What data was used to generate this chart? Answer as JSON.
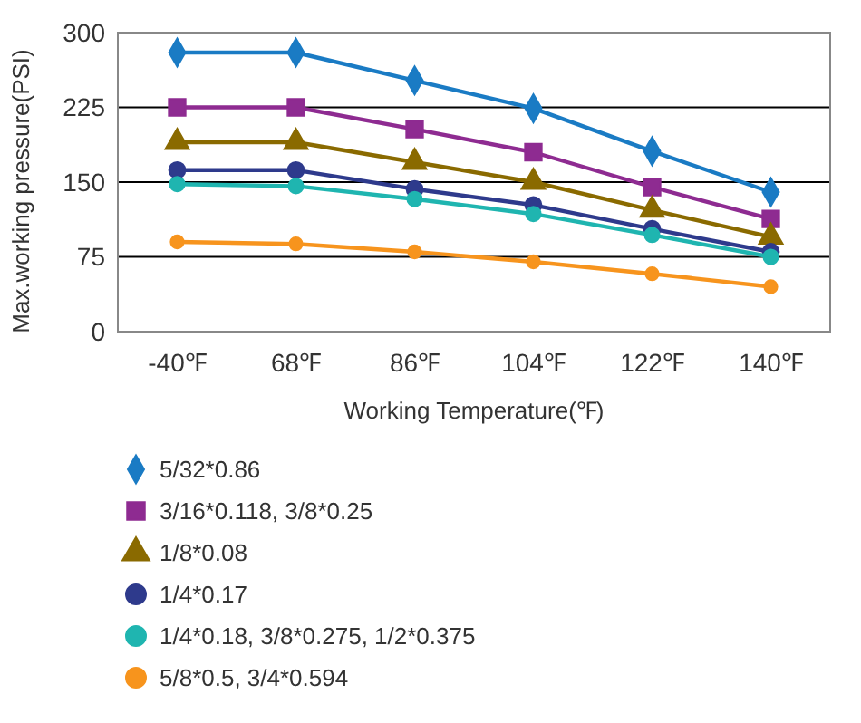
{
  "chart_data": {
    "type": "line",
    "xlabel": "Working Temperature(℉)",
    "ylabel": "Max.working pressure(PSI)",
    "categories": [
      "-40℉",
      "68℉",
      "86℉",
      "104℉",
      "122℉",
      "140℉"
    ],
    "ylim": [
      0,
      300
    ],
    "yticks": [
      0,
      75,
      150,
      225,
      300
    ],
    "grid": "y",
    "legend": "bottom",
    "series": [
      {
        "name": "5/32*0.86",
        "color": "#1a7bc4",
        "marker": "diamond",
        "values": [
          280,
          280,
          252,
          224,
          181,
          140
        ]
      },
      {
        "name": "3/16*0.118, 3/8*0.25",
        "color": "#8e2b91",
        "marker": "square",
        "values": [
          225,
          225,
          203,
          180,
          145,
          113
        ]
      },
      {
        "name": "1/8*0.08",
        "color": "#8a6a00",
        "marker": "triangle",
        "values": [
          190,
          190,
          170,
          150,
          122,
          95
        ]
      },
      {
        "name": "1/4*0.17",
        "color": "#2e3a8c",
        "marker": "circle",
        "values": [
          162,
          162,
          143,
          127,
          103,
          80
        ]
      },
      {
        "name": "1/4*0.18, 3/8*0.275, 1/2*0.375",
        "color": "#1fb5b0",
        "marker": "circle",
        "values": [
          148,
          146,
          133,
          118,
          97,
          75
        ]
      },
      {
        "name": "5/8*0.5, 3/4*0.594",
        "color": "#f7941d",
        "marker": "circle",
        "values": [
          90,
          88,
          80,
          70,
          58,
          45
        ]
      }
    ]
  }
}
